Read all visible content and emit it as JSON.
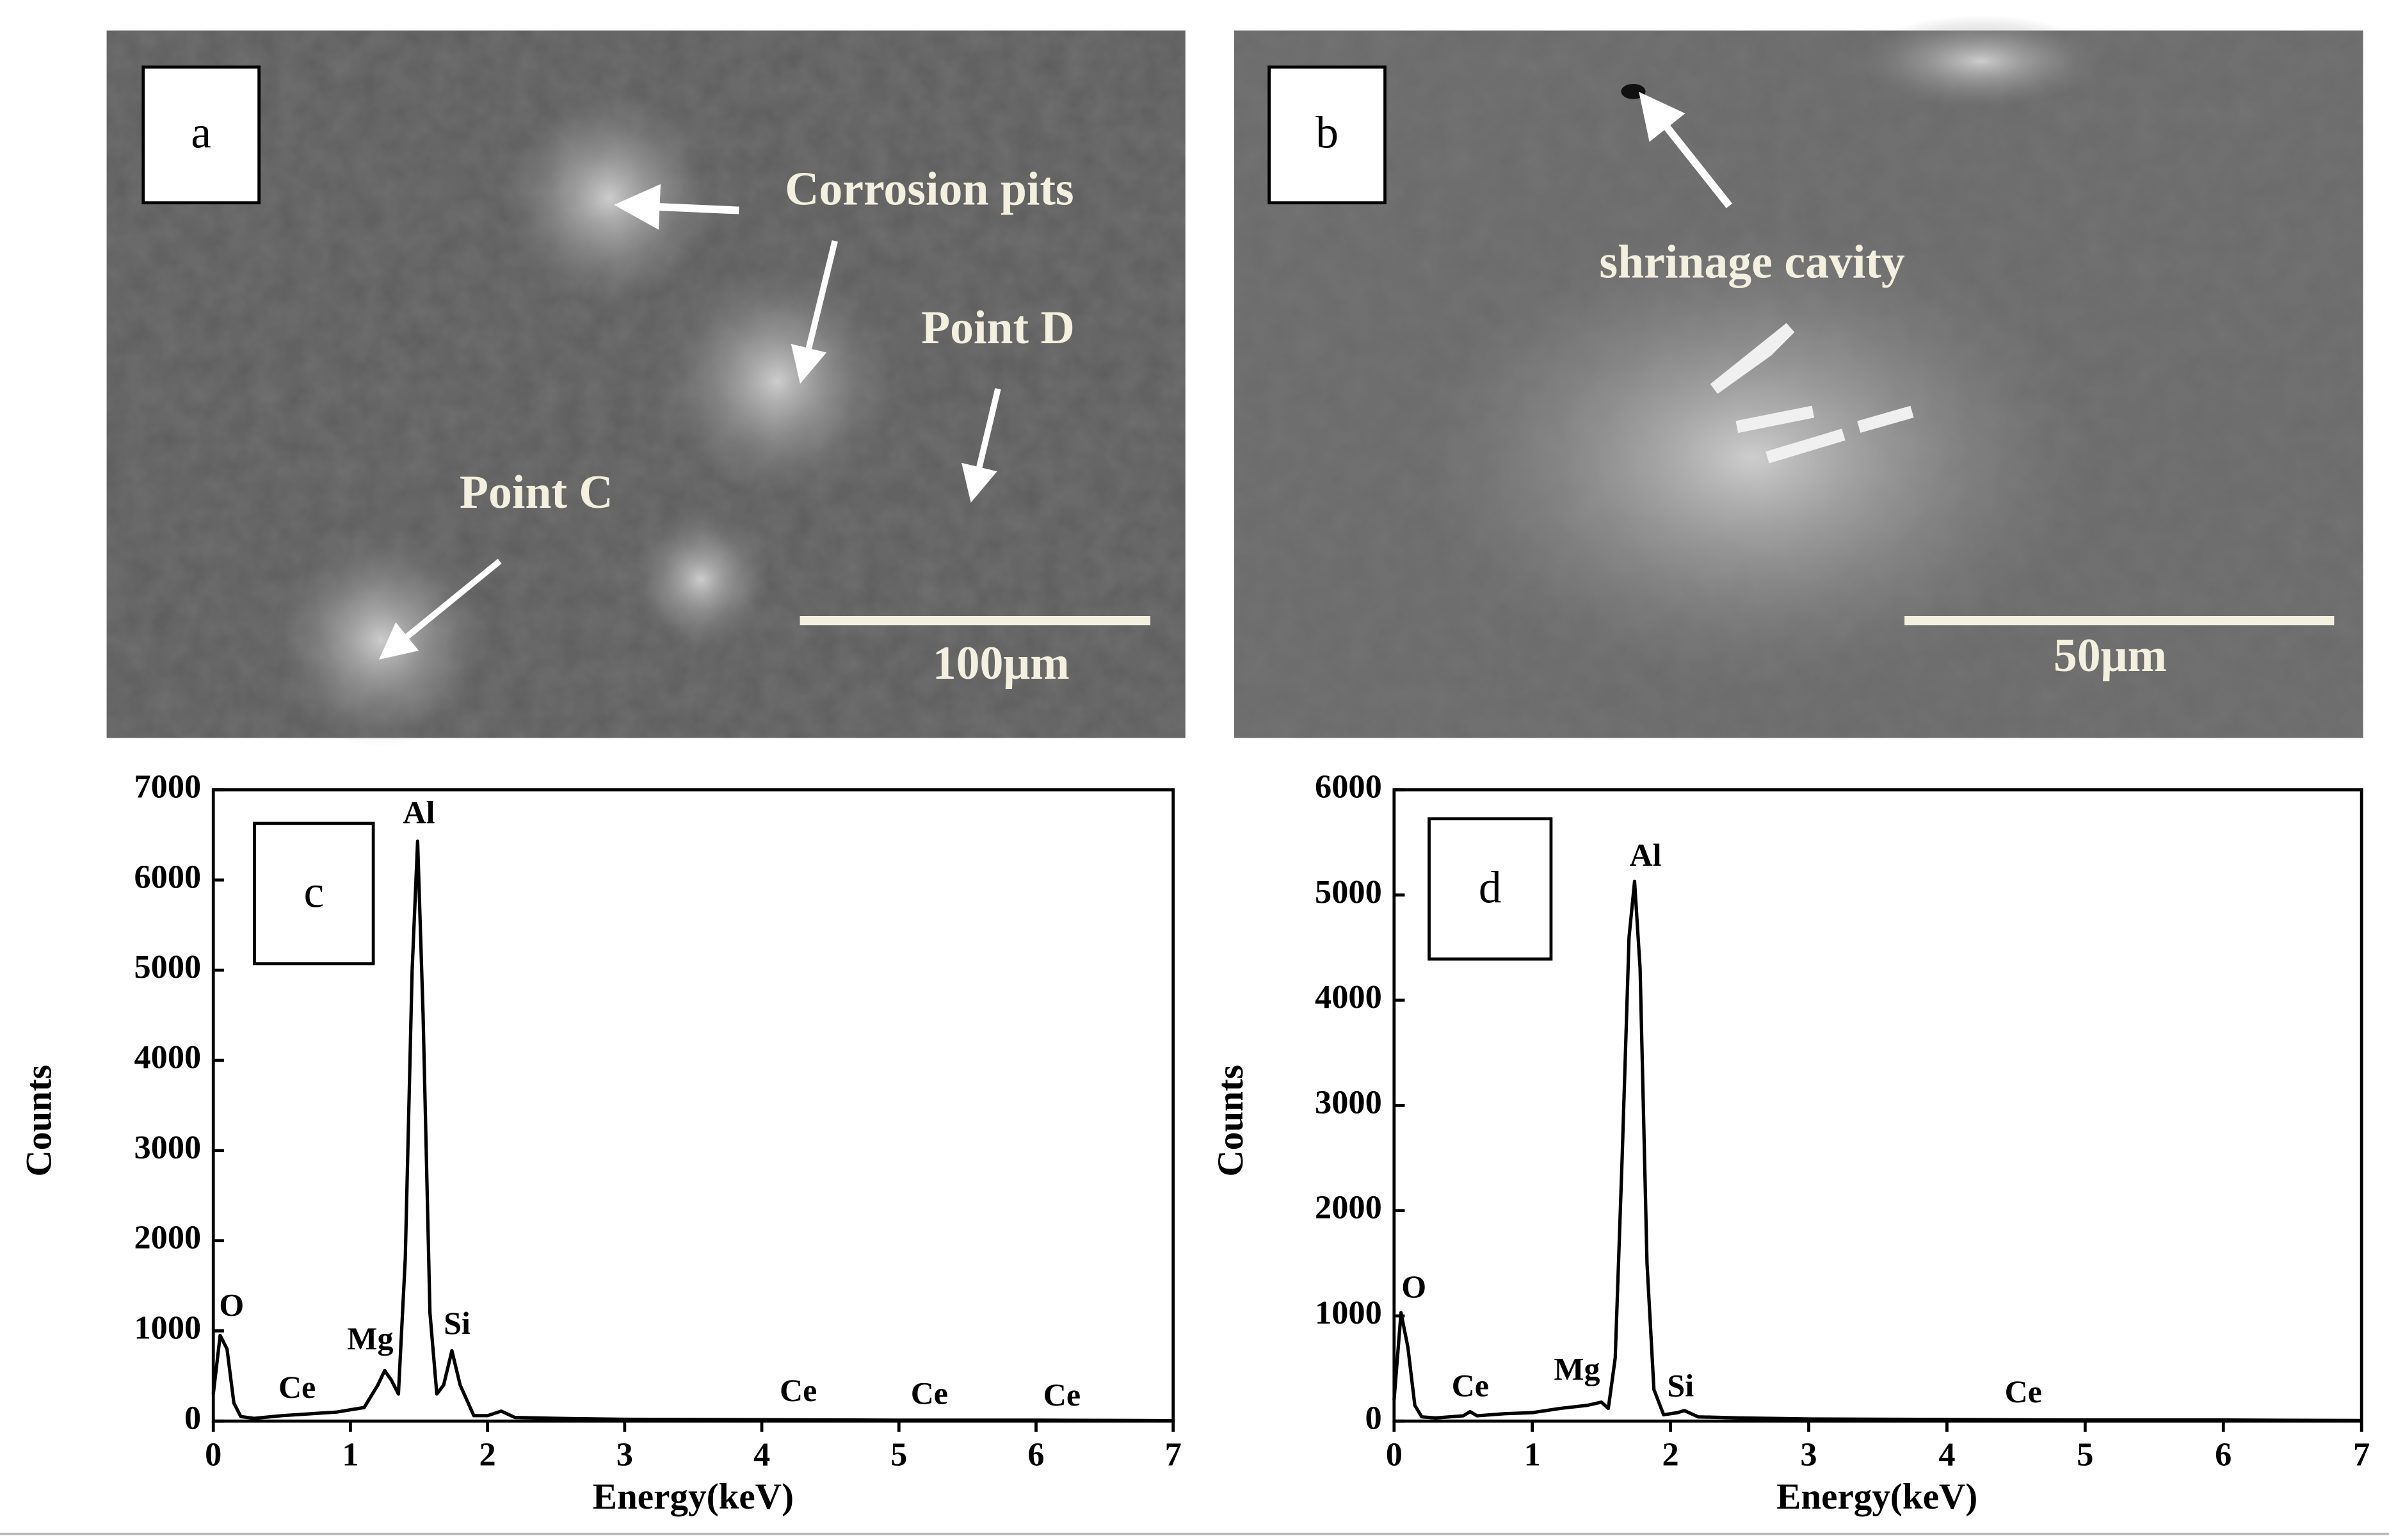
{
  "panels": [
    {
      "label": "a",
      "annotations": [
        "Corrosion pits",
        "Point D",
        "Point C"
      ],
      "scale_bar": "100μm"
    },
    {
      "label": "b",
      "annotations": [
        "shrinage cavity"
      ],
      "scale_bar": "50μm"
    }
  ],
  "chart_data": [
    {
      "type": "line",
      "label": "c",
      "x_label": "Energy(keV)",
      "y_label": "Counts",
      "color": "#000000",
      "x": [
        0,
        0.05,
        0.1,
        0.15,
        0.2,
        0.3,
        0.5,
        0.7,
        0.9,
        1.1,
        1.2,
        1.25,
        1.3,
        1.35,
        1.4,
        1.45,
        1.49,
        1.53,
        1.58,
        1.63,
        1.68,
        1.74,
        1.8,
        1.9,
        2.0,
        2.1,
        2.2,
        2.5,
        3,
        4,
        5,
        6,
        7
      ],
      "values": [
        300,
        950,
        800,
        200,
        50,
        30,
        60,
        80,
        100,
        150,
        400,
        560,
        450,
        300,
        1800,
        5000,
        6430,
        4500,
        1200,
        300,
        400,
        780,
        400,
        60,
        60,
        110,
        40,
        30,
        20,
        15,
        10,
        10,
        5
      ],
      "xlim": [
        0,
        7
      ],
      "xticks": [
        0,
        1,
        2,
        3,
        4,
        5,
        6,
        7
      ],
      "ylim": [
        0,
        7000
      ],
      "yticks": [
        0,
        1000,
        2000,
        3000,
        4000,
        5000,
        6000,
        7000
      ],
      "annotations": [
        "Al",
        "O",
        "Mg",
        "Si",
        "Ce",
        "Ce",
        "Ce",
        "Ce"
      ]
    },
    {
      "type": "line",
      "label": "d",
      "x_label": "Energy(keV)",
      "y_label": "Counts",
      "color": "#000000",
      "x": [
        0,
        0.05,
        0.1,
        0.15,
        0.2,
        0.3,
        0.5,
        0.55,
        0.6,
        0.8,
        1.0,
        1.2,
        1.4,
        1.5,
        1.55,
        1.6,
        1.65,
        1.7,
        1.74,
        1.78,
        1.83,
        1.88,
        1.95,
        2.05,
        2.1,
        2.2,
        2.5,
        3,
        4,
        5,
        6,
        7
      ],
      "values": [
        200,
        1030,
        700,
        150,
        40,
        30,
        50,
        90,
        50,
        70,
        80,
        120,
        150,
        180,
        120,
        600,
        2500,
        4600,
        5130,
        4300,
        1500,
        300,
        60,
        80,
        100,
        40,
        30,
        20,
        15,
        10,
        10,
        5
      ],
      "xlim": [
        0,
        7
      ],
      "xticks": [
        0,
        1,
        2,
        3,
        4,
        5,
        6,
        7
      ],
      "ylim": [
        0,
        6000
      ],
      "yticks": [
        0,
        1000,
        2000,
        3000,
        4000,
        5000,
        6000
      ],
      "annotations": [
        "Al",
        "O",
        "Mg",
        "Si",
        "Ce",
        "Ce"
      ]
    }
  ]
}
